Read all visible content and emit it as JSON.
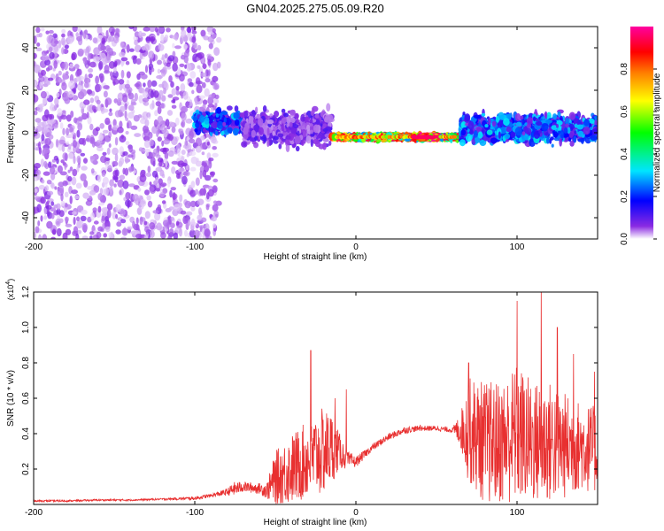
{
  "figure_title": "GN04.2025.275.05.09.R20",
  "chart_data": [
    {
      "type": "heatmap",
      "title": "GN04.2025.275.05.09.R20",
      "xlabel": "Height of straight line (km)",
      "ylabel": "Frequency (Hz)",
      "xlim": [
        -200,
        150
      ],
      "ylim": [
        -50,
        50
      ],
      "x_ticks": [
        -200,
        -100,
        0,
        100
      ],
      "y_ticks": [
        -40,
        -20,
        0,
        20,
        40
      ],
      "x_tick_labels": [
        "-200",
        "-100",
        "0",
        "100"
      ],
      "y_tick_labels": [
        "-40",
        "-20",
        "0",
        "20",
        "40"
      ],
      "colorbar": {
        "label": "Normalized spectral amplitude",
        "range": [
          0,
          1
        ],
        "ticks": [
          0.0,
          0.2,
          0.4,
          0.6,
          0.8
        ],
        "tick_labels": [
          "0.0",
          "0.2",
          "0.4",
          "0.6",
          "0.8"
        ],
        "colormap": [
          "#ffffff",
          "#8a2be2",
          "#0000ff",
          "#00e5ff",
          "#00ff00",
          "#ffff00",
          "#ff8000",
          "#ff0000",
          "#ff00a0"
        ]
      },
      "regions": [
        {
          "x_range": [
            -200,
            -85
          ],
          "freq_center": 0,
          "freq_spread": 50,
          "amplitude": 0.05,
          "description": "scattered low amplitude noise"
        },
        {
          "x_range": [
            -100,
            -70
          ],
          "freq_center": 5,
          "freq_spread": 8,
          "amplitude": 0.3
        },
        {
          "x_range": [
            -70,
            -15
          ],
          "freq_center": 2,
          "freq_spread": 12,
          "amplitude": 0.15
        },
        {
          "x_range": [
            -15,
            65
          ],
          "freq_center": -2,
          "freq_spread": 1.5,
          "amplitude": 0.75
        },
        {
          "x_range": [
            40,
            50
          ],
          "freq_center": -2,
          "freq_spread": 1,
          "amplitude": 1.0
        },
        {
          "x_range": [
            65,
            150
          ],
          "freq_center": 2,
          "freq_spread": 10,
          "amplitude": 0.3
        }
      ]
    },
    {
      "type": "line",
      "xlabel": "Height of straight line (km)",
      "ylabel": "SNR (10 * v/v)",
      "y_multiplier_label": "(x10",
      "y_multiplier_exponent": "4",
      "y_multiplier_close": ")",
      "xlim": [
        -200,
        150
      ],
      "ylim": [
        0,
        1.2
      ],
      "x_ticks": [
        -200,
        -100,
        0,
        100
      ],
      "y_ticks": [
        0.2,
        0.4,
        0.6,
        0.8,
        1.0,
        1.2
      ],
      "x_tick_labels": [
        "-200",
        "-100",
        "0",
        "100"
      ],
      "y_tick_labels": [
        "0.2",
        "0.4",
        "0.6",
        "0.8",
        "1.0",
        "1.2"
      ],
      "color": "#e83030",
      "series": [
        {
          "name": "SNR",
          "x": [
            -200,
            -180,
            -160,
            -140,
            -120,
            -100,
            -90,
            -80,
            -75,
            -70,
            -60,
            -55,
            -50,
            -40,
            -30,
            -20,
            -15,
            -10,
            -5,
            0,
            10,
            20,
            30,
            40,
            50,
            60,
            65,
            70,
            80,
            90,
            100,
            110,
            120,
            130,
            140,
            150
          ],
          "y": [
            0.02,
            0.02,
            0.025,
            0.025,
            0.03,
            0.035,
            0.05,
            0.07,
            0.09,
            0.1,
            0.09,
            0.08,
            0.15,
            0.2,
            0.25,
            0.3,
            0.32,
            0.3,
            0.25,
            0.24,
            0.32,
            0.38,
            0.42,
            0.43,
            0.43,
            0.42,
            0.42,
            0.42,
            0.35,
            0.35,
            0.4,
            0.35,
            0.35,
            0.33,
            0.33,
            0.3
          ],
          "noise_spread": [
            0.005,
            0.005,
            0.005,
            0.005,
            0.005,
            0.01,
            0.01,
            0.02,
            0.04,
            0.03,
            0.03,
            0.05,
            0.15,
            0.2,
            0.22,
            0.25,
            0.2,
            0.1,
            0.05,
            0.03,
            0.02,
            0.02,
            0.02,
            0.015,
            0.015,
            0.015,
            0.1,
            0.3,
            0.35,
            0.35,
            0.4,
            0.35,
            0.35,
            0.3,
            0.25,
            0.25
          ],
          "peaks": [
            [
              -28,
              0.87
            ],
            [
              -13,
              0.6
            ],
            [
              -6,
              0.65
            ],
            [
              40,
              0.45
            ],
            [
              70,
              0.8
            ],
            [
              100,
              1.15
            ],
            [
              115,
              1.22
            ],
            [
              125,
              1.0
            ],
            [
              135,
              0.85
            ],
            [
              148,
              0.75
            ]
          ]
        }
      ]
    }
  ]
}
